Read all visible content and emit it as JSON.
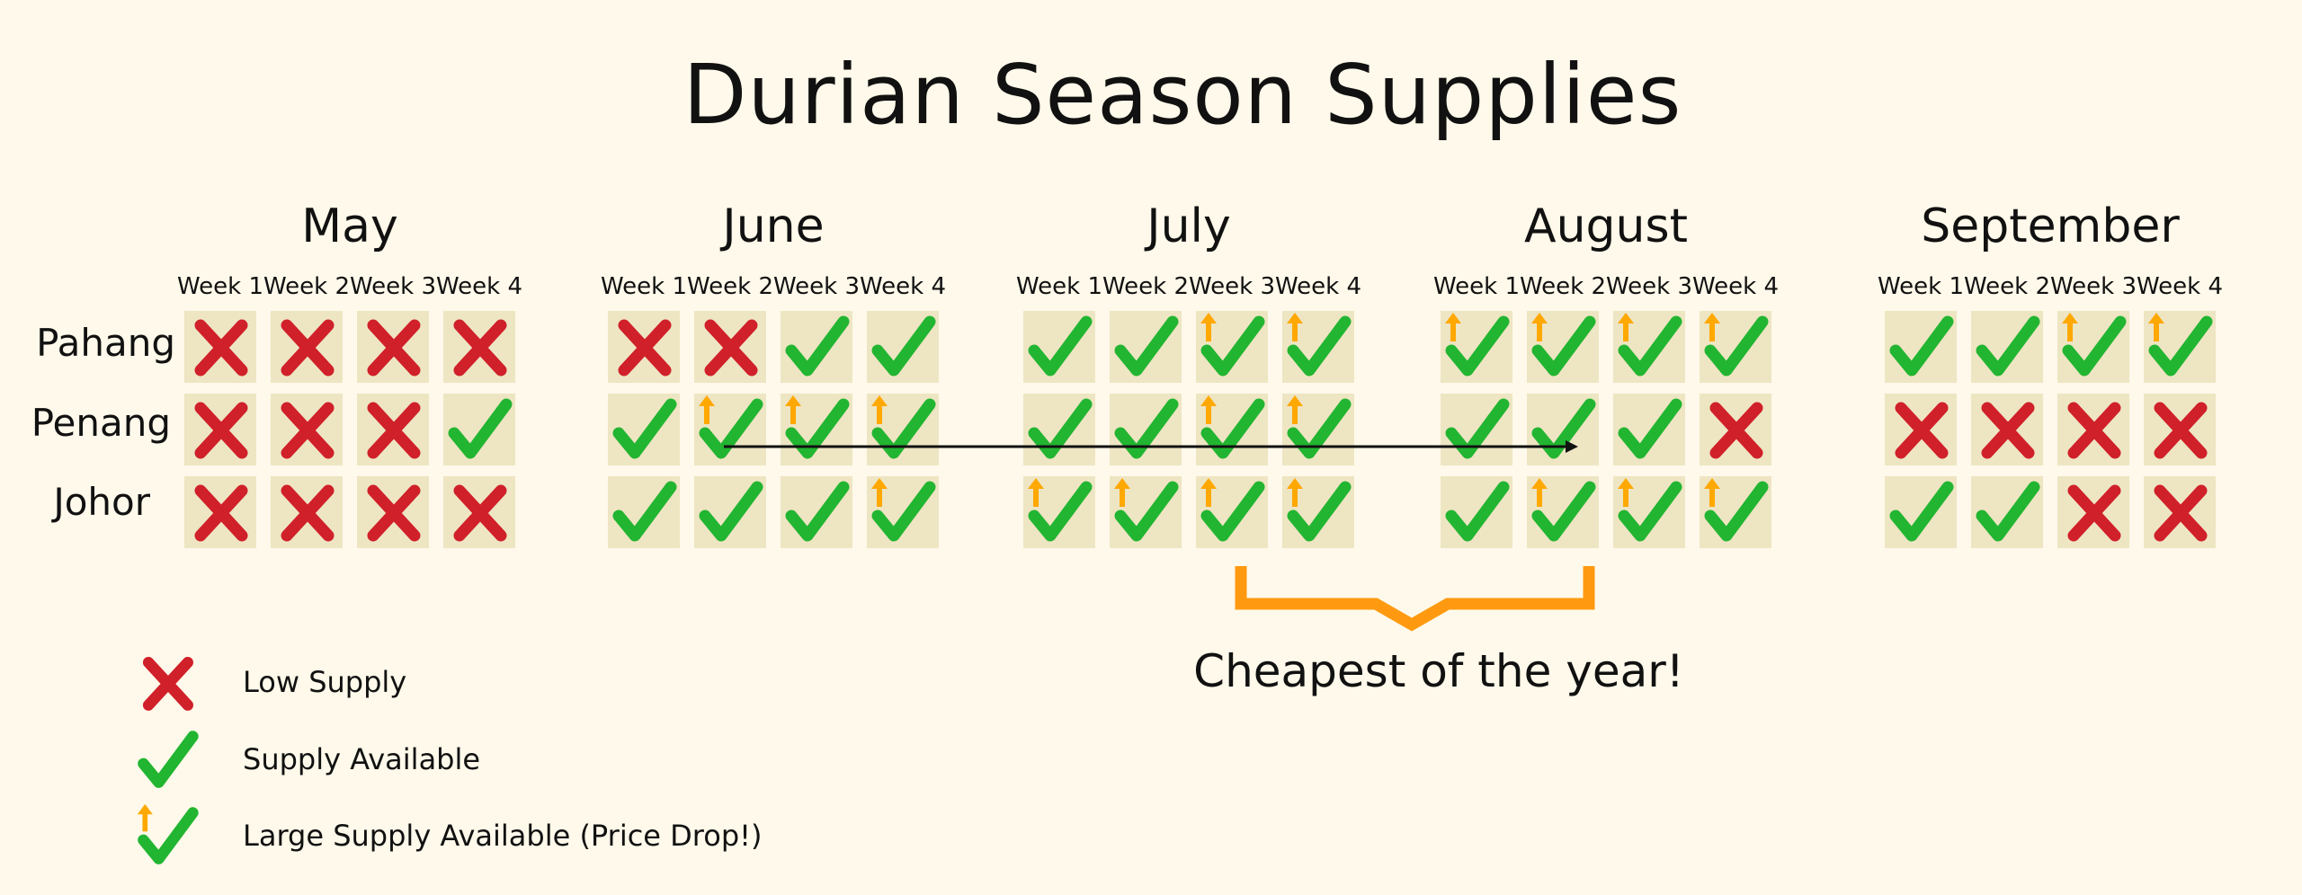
{
  "title": "Durian Season Supplies",
  "colors": {
    "background": "#fef9ea",
    "cell": "#eee5c3",
    "low": "#d0202a",
    "available": "#22b531",
    "price_drop_arrow": "#ffa800",
    "bracket": "#ff9a10"
  },
  "regions": [
    "Pahang",
    "Penang",
    "Johor"
  ],
  "status_legend": {
    "X": "low supply",
    "C": "supply available",
    "A": "large supply available (price drop)"
  },
  "months": [
    {
      "name": "May",
      "weeks": [
        "Week 1",
        "Week 2",
        "Week 3",
        "Week 4"
      ],
      "status": [
        [
          "X",
          "X",
          "X",
          "X"
        ],
        [
          "X",
          "X",
          "X",
          "C"
        ],
        [
          "X",
          "X",
          "X",
          "X"
        ]
      ]
    },
    {
      "name": "June",
      "weeks": [
        "Week 1",
        "Week 2",
        "Week 3",
        "Week 4"
      ],
      "status": [
        [
          "X",
          "X",
          "C",
          "C"
        ],
        [
          "C",
          "A",
          "A",
          "A"
        ],
        [
          "C",
          "C",
          "C",
          "A"
        ]
      ]
    },
    {
      "name": "July",
      "weeks": [
        "Week 1",
        "Week 2",
        "Week 3",
        "Week 4"
      ],
      "status": [
        [
          "C",
          "C",
          "A",
          "A"
        ],
        [
          "C",
          "C",
          "A",
          "A"
        ],
        [
          "A",
          "A",
          "A",
          "A"
        ]
      ]
    },
    {
      "name": "August",
      "weeks": [
        "Week 1",
        "Week 2",
        "Week 3",
        "Week 4"
      ],
      "status": [
        [
          "A",
          "A",
          "A",
          "A"
        ],
        [
          "C",
          "C",
          "C",
          "X"
        ],
        [
          "C",
          "A",
          "A",
          "A"
        ]
      ]
    },
    {
      "name": "September",
      "weeks": [
        "Week 1",
        "Week 2",
        "Week 3",
        "Week 4"
      ],
      "status": [
        [
          "C",
          "C",
          "A",
          "A"
        ],
        [
          "X",
          "X",
          "X",
          "X"
        ],
        [
          "C",
          "C",
          "X",
          "X"
        ]
      ]
    }
  ],
  "annotation": {
    "label": "Cheapest of the year!"
  },
  "legend": [
    {
      "icon": "X",
      "label": "Low Supply"
    },
    {
      "icon": "C",
      "label": "Supply Available"
    },
    {
      "icon": "A",
      "label": "Large Supply Available (Price Drop!)"
    }
  ]
}
